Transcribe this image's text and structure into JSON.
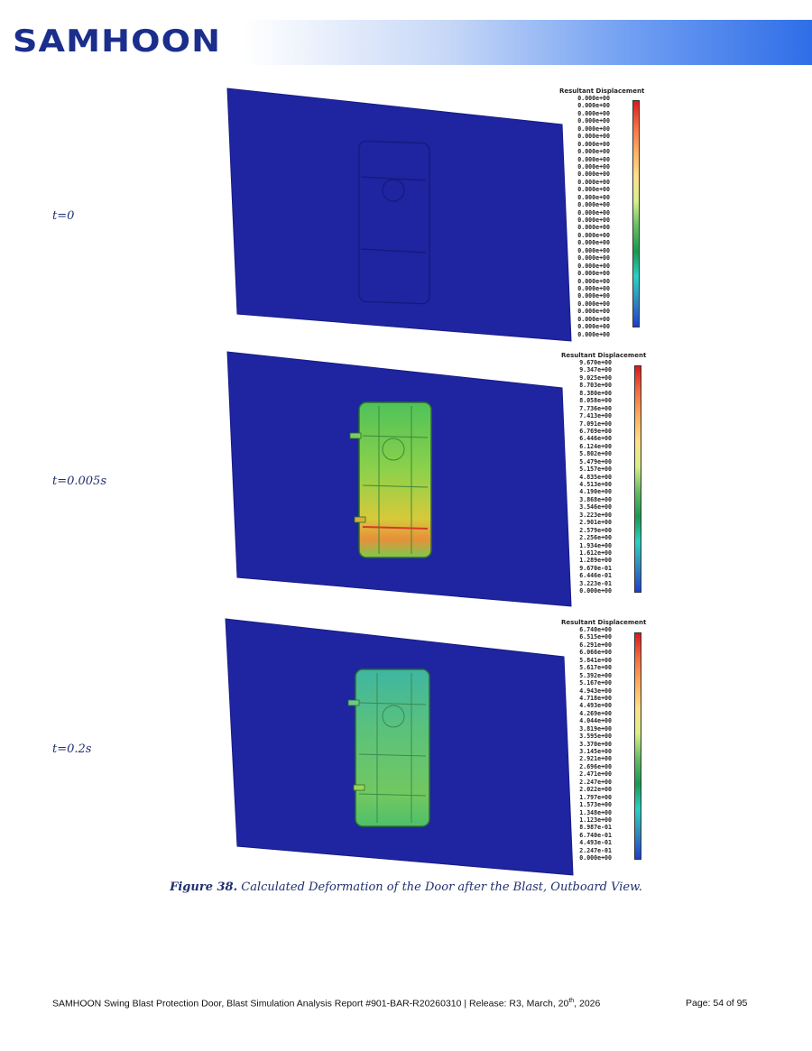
{
  "header": {
    "logo_text": "SAMHOON"
  },
  "panels": [
    {
      "time_label": "t=0",
      "legend_title": "Resultant Displacement",
      "legend_values": [
        "0.000e+00",
        "0.000e+00",
        "0.000e+00",
        "0.000e+00",
        "0.000e+00",
        "0.000e+00",
        "0.000e+00",
        "0.000e+00",
        "0.000e+00",
        "0.000e+00",
        "0.000e+00",
        "0.000e+00",
        "0.000e+00",
        "0.000e+00",
        "0.000e+00",
        "0.000e+00",
        "0.000e+00",
        "0.000e+00",
        "0.000e+00",
        "0.000e+00",
        "0.000e+00",
        "0.000e+00",
        "0.000e+00",
        "0.000e+00",
        "0.000e+00",
        "0.000e+00",
        "0.000e+00",
        "0.000e+00",
        "0.000e+00",
        "0.000e+00",
        "0.000e+00",
        "0.000e+00"
      ]
    },
    {
      "time_label": "t=0.005s",
      "legend_title": "Resultant Displacement",
      "legend_values": [
        "9.670e+00",
        "9.347e+00",
        "9.025e+00",
        "8.703e+00",
        "8.380e+00",
        "8.058e+00",
        "7.736e+00",
        "7.413e+00",
        "7.091e+00",
        "6.769e+00",
        "6.446e+00",
        "6.124e+00",
        "5.802e+00",
        "5.479e+00",
        "5.157e+00",
        "4.835e+00",
        "4.513e+00",
        "4.190e+00",
        "3.868e+00",
        "3.546e+00",
        "3.223e+00",
        "2.901e+00",
        "2.579e+00",
        "2.256e+00",
        "1.934e+00",
        "1.612e+00",
        "1.289e+00",
        "9.670e-01",
        "6.446e-01",
        "3.223e-01",
        "0.000e+00"
      ]
    },
    {
      "time_label": "t=0.2s",
      "legend_title": "Resultant Displacement",
      "legend_values": [
        "6.740e+00",
        "6.515e+00",
        "6.291e+00",
        "6.066e+00",
        "5.841e+00",
        "5.617e+00",
        "5.392e+00",
        "5.167e+00",
        "4.943e+00",
        "4.718e+00",
        "4.493e+00",
        "4.269e+00",
        "4.044e+00",
        "3.819e+00",
        "3.595e+00",
        "3.370e+00",
        "3.145e+00",
        "2.921e+00",
        "2.696e+00",
        "2.471e+00",
        "2.247e+00",
        "2.022e+00",
        "1.797e+00",
        "1.573e+00",
        "1.348e+00",
        "1.123e+00",
        "8.987e-01",
        "6.740e-01",
        "4.493e-01",
        "2.247e-01",
        "0.000e+00"
      ]
    }
  ],
  "caption": {
    "figure_label": "Figure 38.",
    "text": " Calculated Deformation of the Door after the Blast, Outboard View."
  },
  "footer": {
    "text_before_sup": "SAMHOON Swing Blast Protection Door, Blast Simulation Analysis Report #901-BAR-R20260310 | Release: R3, March, 20",
    "sup": "th",
    "text_after_sup": ", 2026",
    "page": "Page:  54 of 95"
  },
  "colors": {
    "plate": "#1f24a0",
    "plate_edge": "#171c86",
    "brand": "#1b2e8c",
    "text": "#1f2f6e"
  }
}
